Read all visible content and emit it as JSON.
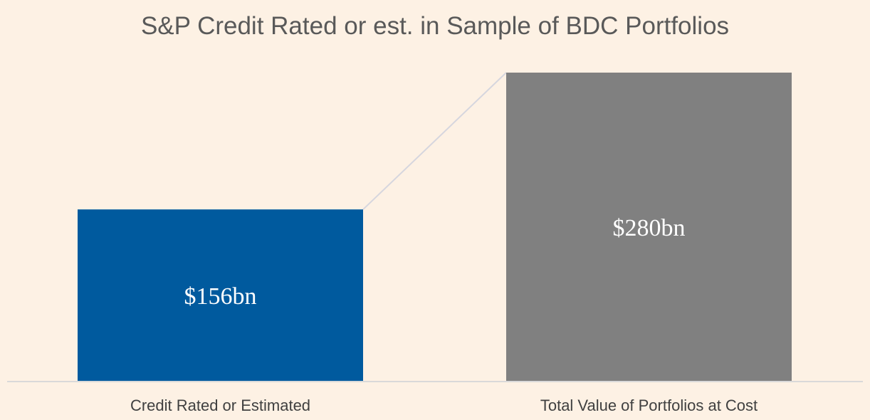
{
  "chart_data": {
    "type": "bar",
    "title": "S&P Credit Rated or est. in Sample of BDC Portfolios",
    "categories": [
      "Credit Rated or Estimated",
      "Total Value of Portfolios at Cost"
    ],
    "values": [
      156,
      280
    ],
    "data_labels": [
      "$156bn",
      "$280bn"
    ],
    "unit": "bn USD",
    "colors": [
      "#005A9E",
      "#808080"
    ],
    "connector_color": "#D6D6DE",
    "axis_color": "#D9D9D9",
    "background": "#FDF1E4",
    "xlabel": "",
    "ylabel": "",
    "ylim": [
      0,
      280
    ],
    "grid": false
  }
}
